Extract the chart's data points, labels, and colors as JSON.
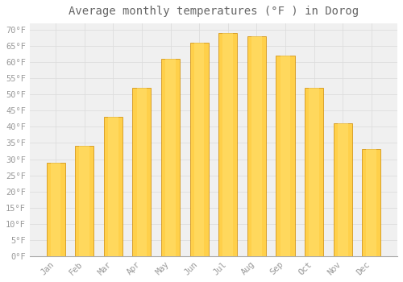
{
  "title": "Average monthly temperatures (°F ) in Dorog",
  "months": [
    "Jan",
    "Feb",
    "Mar",
    "Apr",
    "May",
    "Jun",
    "Jul",
    "Aug",
    "Sep",
    "Oct",
    "Nov",
    "Dec"
  ],
  "values": [
    29.0,
    34.0,
    43.0,
    52.0,
    61.0,
    66.0,
    69.0,
    68.0,
    62.0,
    52.0,
    41.0,
    33.0
  ],
  "bar_color_light": "#FFD04A",
  "bar_color_dark": "#F59B00",
  "bar_edge_color": "#CC8800",
  "background_color": "#FFFFFF",
  "plot_bg_color": "#F0F0F0",
  "grid_color": "#DDDDDD",
  "text_color": "#999999",
  "title_color": "#666666",
  "ylim": [
    0,
    72
  ],
  "yticks": [
    0,
    5,
    10,
    15,
    20,
    25,
    30,
    35,
    40,
    45,
    50,
    55,
    60,
    65,
    70
  ],
  "title_fontsize": 10,
  "tick_fontsize": 7.5,
  "figsize": [
    5.0,
    3.5
  ],
  "dpi": 100
}
